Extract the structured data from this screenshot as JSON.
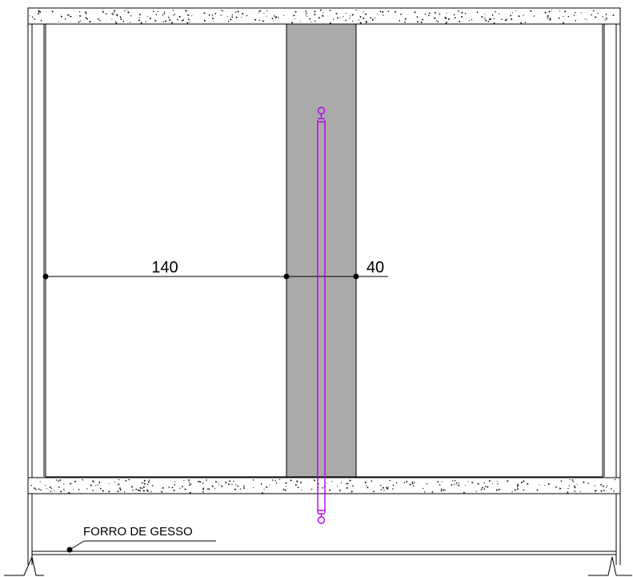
{
  "drawing": {
    "dimensions": {
      "left_width": "140",
      "right_width": "40"
    },
    "annotation": {
      "ceiling_label": "FORRO DE GESSO"
    },
    "colors": {
      "line": "#000000",
      "wall_fill": "#aaaaaa",
      "pipe": "#b400e6",
      "background": "#ffffff"
    }
  }
}
